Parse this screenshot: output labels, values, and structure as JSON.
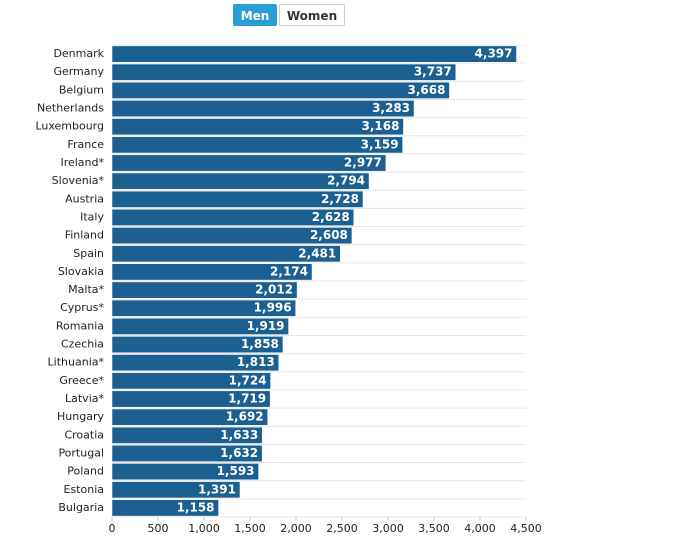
{
  "controls": {
    "options": [
      "Men",
      "Women"
    ],
    "selected": "Men"
  },
  "chart_data": {
    "type": "hbar",
    "color": "#1b6090",
    "label_color": "#ffffff",
    "categories": [
      "Denmark",
      "Germany",
      "Belgium",
      "Netherlands",
      "Luxembourg",
      "France",
      "Ireland*",
      "Slovenia*",
      "Austria",
      "Italy",
      "Finland",
      "Spain",
      "Slovakia",
      "Malta*",
      "Cyprus*",
      "Romania",
      "Czechia",
      "Lithuania*",
      "Greece*",
      "Latvia*",
      "Hungary",
      "Croatia",
      "Portugal",
      "Poland",
      "Estonia",
      "Bulgaria"
    ],
    "values": [
      4397,
      3737,
      3668,
      3283,
      3168,
      3159,
      2977,
      2794,
      2728,
      2628,
      2608,
      2481,
      2174,
      2012,
      1996,
      1919,
      1858,
      1813,
      1724,
      1719,
      1692,
      1633,
      1632,
      1593,
      1391,
      1158
    ],
    "value_labels": [
      "4,397",
      "3,737",
      "3,668",
      "3,283",
      "3,168",
      "3,159",
      "2,977",
      "2,794",
      "2,728",
      "2,628",
      "2,608",
      "2,481",
      "2,174",
      "2,012",
      "1,996",
      "1,919",
      "1,858",
      "1,813",
      "1,724",
      "1,719",
      "1,692",
      "1,633",
      "1,632",
      "1,593",
      "1,391",
      "1,158"
    ],
    "xlim": [
      0,
      4500
    ],
    "xticks": [
      0,
      500,
      {
        "value": 1000,
        "label": "1,000"
      },
      {
        "value": 1500,
        "label": "1,500"
      },
      {
        "value": 2000,
        "label": "2,000"
      },
      {
        "value": 2500,
        "label": "2,500"
      },
      {
        "value": 3000,
        "label": "3,000"
      },
      {
        "value": 3500,
        "label": "3,500"
      },
      {
        "value": 4000,
        "label": "4,000"
      },
      {
        "value": 4500,
        "label": "4,500"
      }
    ]
  }
}
